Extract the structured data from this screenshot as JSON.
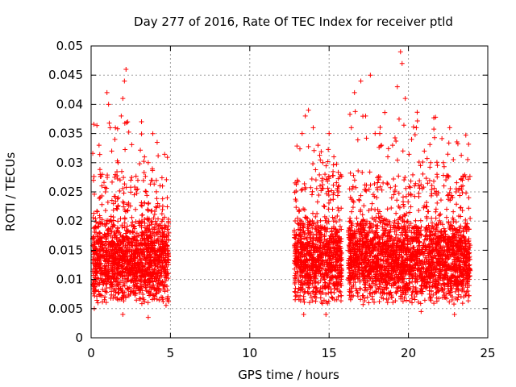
{
  "chart_data": {
    "type": "scatter",
    "title": "Day 277 of 2016, Rate Of TEC Index for receiver ptld",
    "xlabel": "GPS time / hours",
    "ylabel": "ROTI / TECUs",
    "xlim": [
      0,
      25
    ],
    "ylim": [
      0,
      0.05
    ],
    "xticks": [
      0,
      5,
      10,
      15,
      20,
      25
    ],
    "yticks": [
      0,
      0.005,
      0.01,
      0.015,
      0.02,
      0.025,
      0.03,
      0.035,
      0.04,
      0.045,
      0.05
    ],
    "xtick_labels": [
      "0",
      "5",
      "10",
      "15",
      "20",
      "25"
    ],
    "ytick_labels": [
      "0",
      "0.005",
      "0.01",
      "0.015",
      "0.02",
      "0.025",
      "0.03",
      "0.035",
      "0.04",
      "0.045",
      "0.05"
    ],
    "grid": true,
    "marker": "+",
    "color": "#ff0000",
    "series": [
      {
        "name": "ROTI",
        "description_segments": [
          {
            "x_range": [
              0.1,
              4.9
            ],
            "y_min": 0.003,
            "y_max": 0.046
          },
          {
            "x_range": [
              12.8,
              15.8
            ],
            "y_min": 0.003,
            "y_max": 0.039
          },
          {
            "x_range": [
              16.2,
              23.9
            ],
            "y_min": 0.004,
            "y_max": 0.049
          }
        ],
        "points": [
          [
            0.3,
            0.012
          ],
          [
            0.5,
            0.033
          ],
          [
            0.7,
            0.028
          ],
          [
            0.9,
            0.025
          ],
          [
            1.0,
            0.042
          ],
          [
            1.1,
            0.04
          ],
          [
            1.2,
            0.036
          ],
          [
            1.3,
            0.032
          ],
          [
            1.5,
            0.034
          ],
          [
            1.7,
            0.03
          ],
          [
            1.9,
            0.038
          ],
          [
            2.0,
            0.041
          ],
          [
            2.1,
            0.044
          ],
          [
            2.2,
            0.046
          ],
          [
            2.3,
            0.037
          ],
          [
            2.5,
            0.027
          ],
          [
            2.8,
            0.022
          ],
          [
            3.2,
            0.021
          ],
          [
            3.6,
            0.03
          ],
          [
            3.8,
            0.027
          ],
          [
            4.2,
            0.023
          ],
          [
            4.5,
            0.026
          ],
          [
            4.8,
            0.024
          ],
          [
            2.0,
            0.004
          ],
          [
            3.6,
            0.0035
          ],
          [
            0.2,
            0.005
          ],
          [
            13.0,
            0.027
          ],
          [
            13.3,
            0.035
          ],
          [
            13.5,
            0.038
          ],
          [
            13.7,
            0.039
          ],
          [
            14.0,
            0.036
          ],
          [
            14.3,
            0.033
          ],
          [
            14.6,
            0.03
          ],
          [
            15.0,
            0.035
          ],
          [
            15.3,
            0.031
          ],
          [
            15.6,
            0.025
          ],
          [
            13.4,
            0.004
          ],
          [
            14.8,
            0.004
          ],
          [
            16.4,
            0.036
          ],
          [
            16.6,
            0.042
          ],
          [
            17.0,
            0.044
          ],
          [
            17.3,
            0.038
          ],
          [
            17.6,
            0.045
          ],
          [
            17.9,
            0.035
          ],
          [
            18.3,
            0.033
          ],
          [
            18.7,
            0.031
          ],
          [
            19.0,
            0.033
          ],
          [
            19.3,
            0.043
          ],
          [
            19.5,
            0.049
          ],
          [
            19.6,
            0.047
          ],
          [
            19.8,
            0.041
          ],
          [
            20.2,
            0.034
          ],
          [
            20.5,
            0.036
          ],
          [
            21.0,
            0.032
          ],
          [
            21.4,
            0.03
          ],
          [
            21.8,
            0.028
          ],
          [
            22.2,
            0.03
          ],
          [
            22.6,
            0.036
          ],
          [
            23.0,
            0.025
          ],
          [
            23.4,
            0.027
          ],
          [
            23.8,
            0.024
          ],
          [
            20.8,
            0.0045
          ],
          [
            22.9,
            0.004
          ],
          [
            17.5,
            0.006
          ]
        ]
      }
    ]
  }
}
